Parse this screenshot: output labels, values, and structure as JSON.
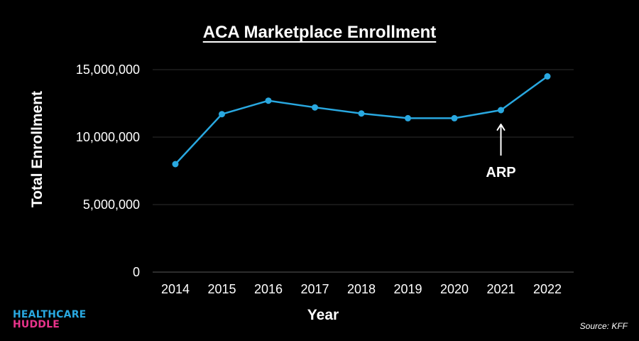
{
  "chart_data": {
    "type": "line",
    "title": "ACA Marketplace Enrollment",
    "xlabel": "Year",
    "ylabel": "Total Enrollment",
    "x": [
      "2014",
      "2015",
      "2016",
      "2017",
      "2018",
      "2019",
      "2020",
      "2021",
      "2022"
    ],
    "series": [
      {
        "values": [
          8000000,
          11700000,
          12700000,
          12200000,
          11750000,
          11400000,
          11400000,
          12000000,
          14500000
        ]
      }
    ],
    "ylim": [
      0,
      15000000
    ],
    "y_ticks": [
      0,
      5000000,
      10000000,
      15000000
    ],
    "y_tick_labels": [
      "0",
      "5,000,000",
      "10,000,000",
      "15,000,000"
    ],
    "grid": "horizontal",
    "line_color": "#29a8e0",
    "annotations": [
      {
        "text": "ARP",
        "x": "2021"
      }
    ]
  },
  "branding": {
    "logo_line1": "HEALTHCARE",
    "logo_line2": "HUDDLE",
    "logo_color1": "#29a8e0",
    "logo_color2": "#e8338b"
  },
  "source": "Source: KFF"
}
